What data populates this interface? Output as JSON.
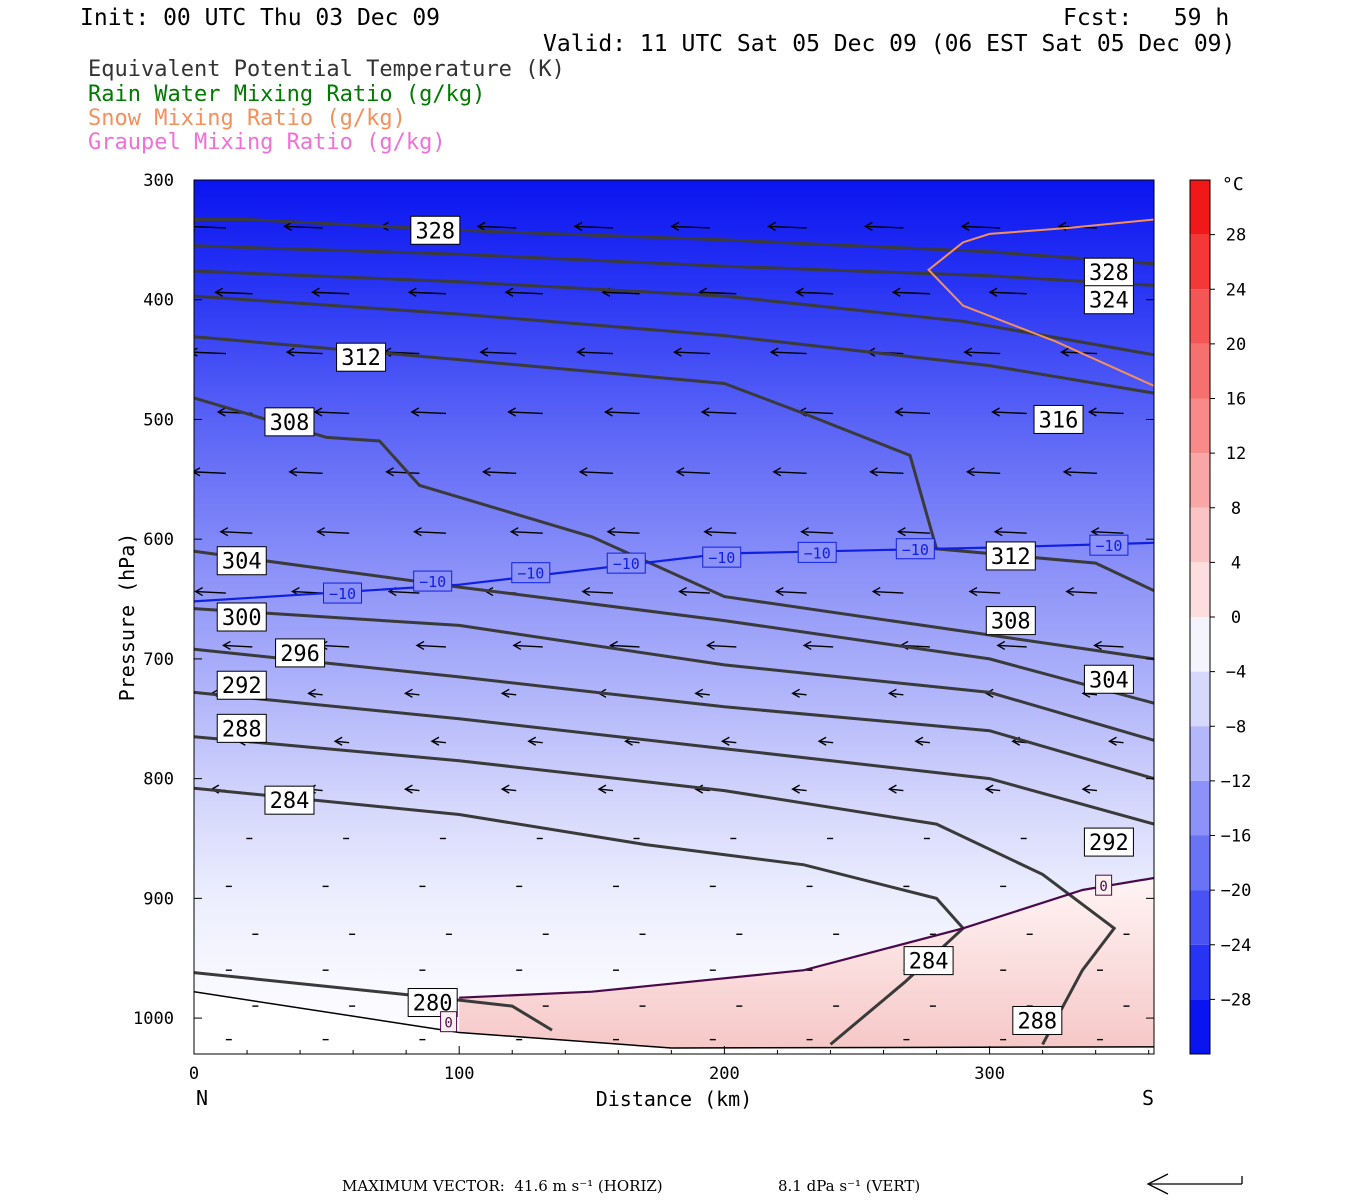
{
  "header": {
    "init": "Init: 00 UTC Thu 03 Dec 09",
    "fcst": "Fcst:   59 h",
    "valid": "Valid: 11 UTC Sat 05 Dec 09 (06 EST Sat 05 Dec 09)"
  },
  "legend": [
    {
      "label": "Equivalent Potential Temperature (K)",
      "color": "#333333"
    },
    {
      "label": "Rain Water Mixing Ratio (g/kg)",
      "color": "#007a00"
    },
    {
      "label": "Snow Mixing Ratio (g/kg)",
      "color": "#f4905a"
    },
    {
      "label": "Graupel Mixing Ratio (g/kg)",
      "color": "#f070d8"
    }
  ],
  "chart_data": {
    "type": "cross-section",
    "xlabel": "Distance (km)",
    "ylabel": "Pressure (hPa)",
    "x_range": [
      0,
      362
    ],
    "y_range": [
      300,
      1030
    ],
    "x_ticks": [
      0,
      100,
      200,
      300
    ],
    "y_ticks": [
      300,
      400,
      500,
      600,
      700,
      800,
      900,
      1000
    ],
    "x_end_labels": {
      "left": "N",
      "right": "S"
    },
    "colorbar": {
      "unit": "°C",
      "labels": [
        "28",
        "24",
        "20",
        "16",
        "12",
        "8",
        "4",
        "0",
        "−4",
        "−8",
        "−12",
        "−16",
        "−20",
        "−24",
        "−28"
      ],
      "label_values": [
        28,
        24,
        20,
        16,
        12,
        8,
        4,
        0,
        -4,
        -8,
        -12,
        -16,
        -20,
        -24,
        -28
      ]
    },
    "theta_e_contours": [
      {
        "value": 328,
        "points": [
          [
            0,
            333
          ],
          [
            20,
            333
          ],
          [
            100,
            342
          ],
          [
            200,
            350
          ],
          [
            300,
            360
          ],
          [
            362,
            370
          ]
        ]
      },
      {
        "value": 328,
        "points": [
          [
            0,
            355
          ],
          [
            100,
            362
          ],
          [
            200,
            372
          ],
          [
            300,
            380
          ],
          [
            362,
            388
          ]
        ]
      },
      {
        "value": 324,
        "points": [
          [
            0,
            376
          ],
          [
            100,
            385
          ],
          [
            200,
            397
          ],
          [
            290,
            418
          ],
          [
            362,
            446
          ]
        ]
      },
      {
        "value": 316,
        "points": [
          [
            0,
            397
          ],
          [
            100,
            412
          ],
          [
            200,
            430
          ],
          [
            300,
            455
          ],
          [
            362,
            478
          ]
        ]
      },
      {
        "value": 312,
        "points": [
          [
            0,
            431
          ],
          [
            100,
            450
          ],
          [
            200,
            470
          ],
          [
            230,
            495
          ],
          [
            270,
            530
          ],
          [
            280,
            608
          ],
          [
            340,
            620
          ],
          [
            362,
            643
          ]
        ]
      },
      {
        "value": 308,
        "points": [
          [
            0,
            482
          ],
          [
            50,
            515
          ],
          [
            70,
            518
          ],
          [
            85,
            555
          ],
          [
            150,
            598
          ],
          [
            200,
            648
          ],
          [
            300,
            680
          ],
          [
            362,
            700
          ]
        ]
      },
      {
        "value": 304,
        "points": [
          [
            0,
            610
          ],
          [
            100,
            640
          ],
          [
            200,
            668
          ],
          [
            300,
            700
          ],
          [
            362,
            737
          ]
        ]
      },
      {
        "value": 300,
        "points": [
          [
            0,
            658
          ],
          [
            100,
            672
          ],
          [
            200,
            705
          ],
          [
            300,
            728
          ],
          [
            362,
            768
          ]
        ]
      },
      {
        "value": 296,
        "points": [
          [
            0,
            692
          ],
          [
            100,
            715
          ],
          [
            200,
            740
          ],
          [
            300,
            760
          ],
          [
            362,
            800
          ]
        ]
      },
      {
        "value": 292,
        "points": [
          [
            0,
            728
          ],
          [
            100,
            750
          ],
          [
            200,
            775
          ],
          [
            300,
            800
          ],
          [
            362,
            838
          ]
        ]
      },
      {
        "value": 288,
        "points": [
          [
            0,
            765
          ],
          [
            100,
            785
          ],
          [
            200,
            810
          ],
          [
            280,
            838
          ],
          [
            320,
            880
          ],
          [
            347,
            925
          ],
          [
            335,
            960
          ],
          [
            320,
            1022
          ]
        ]
      },
      {
        "value": 284,
        "points": [
          [
            0,
            808
          ],
          [
            100,
            830
          ],
          [
            170,
            855
          ],
          [
            230,
            872
          ],
          [
            280,
            900
          ],
          [
            290,
            925
          ],
          [
            268,
            970
          ],
          [
            240,
            1022
          ]
        ]
      },
      {
        "value": 280,
        "points": [
          [
            0,
            962
          ],
          [
            100,
            985
          ],
          [
            120,
            990
          ],
          [
            135,
            1010
          ]
        ]
      }
    ],
    "temp_isotherms": [
      {
        "value": -10,
        "points": [
          [
            0,
            652
          ],
          [
            100,
            638
          ],
          [
            200,
            612
          ],
          [
            300,
            607
          ],
          [
            362,
            603
          ]
        ]
      },
      {
        "value": 0,
        "points": [
          [
            100,
            983
          ],
          [
            150,
            978
          ],
          [
            230,
            960
          ],
          [
            290,
            925
          ],
          [
            335,
            893
          ],
          [
            362,
            883
          ]
        ]
      }
    ],
    "snow_contour": {
      "points": [
        [
          290,
          352
        ],
        [
          300,
          345
        ],
        [
          330,
          340
        ],
        [
          362,
          333
        ]
      ],
      "points2": [
        [
          290,
          352
        ],
        [
          277,
          375
        ],
        [
          290,
          405
        ],
        [
          325,
          435
        ],
        [
          362,
          472
        ]
      ]
    },
    "wind_vectors_note": "leftward (northward) flow aloft, weak near surface",
    "footer": {
      "max_vector": "MAXIMUM VECTOR:  41.6 m s⁻¹ (HORIZ)",
      "vert": "8.1 dPa s⁻¹ (VERT)"
    }
  }
}
